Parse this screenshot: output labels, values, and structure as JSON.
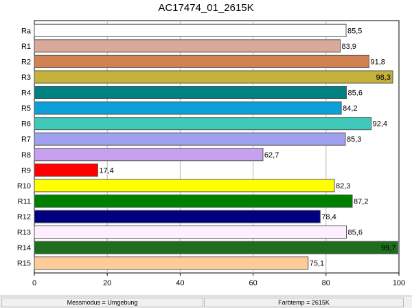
{
  "chart_data": {
    "type": "bar",
    "orientation": "horizontal",
    "title": "AC17474_01_2615K",
    "xlabel": "",
    "ylabel": "",
    "xlim": [
      0,
      100
    ],
    "x_ticks": [
      "0",
      "20",
      "40",
      "60",
      "80",
      "100"
    ],
    "grid": true,
    "categories": [
      "Ra",
      "R1",
      "R2",
      "R3",
      "R4",
      "R5",
      "R6",
      "R7",
      "R8",
      "R9",
      "R10",
      "R11",
      "R12",
      "R13",
      "R14",
      "R15"
    ],
    "values": [
      85.5,
      83.9,
      91.8,
      98.3,
      85.6,
      84.2,
      92.4,
      85.3,
      62.7,
      17.4,
      82.3,
      87.2,
      78.4,
      85.6,
      99.7,
      75.1
    ],
    "value_labels": [
      "85,5",
      "83,9",
      "91,8",
      "98,3",
      "85,6",
      "84,2",
      "92,4",
      "85,3",
      "62,7",
      "17,4",
      "82,3",
      "87,2",
      "78,4",
      "85,6",
      "99,7",
      "75,1"
    ],
    "colors": [
      "#ffffff",
      "#d7aa9a",
      "#d08350",
      "#c4b23a",
      "#008080",
      "#0d9fd8",
      "#40c8b8",
      "#a0a0f0",
      "#c8a0f0",
      "#ff0000",
      "#ffff00",
      "#008000",
      "#000080",
      "#ffeeff",
      "#1e6e1e",
      "#ffcc99"
    ]
  },
  "status": {
    "left": "Messmodus = Umgebung",
    "right": "Farbtemp = 2615K"
  }
}
